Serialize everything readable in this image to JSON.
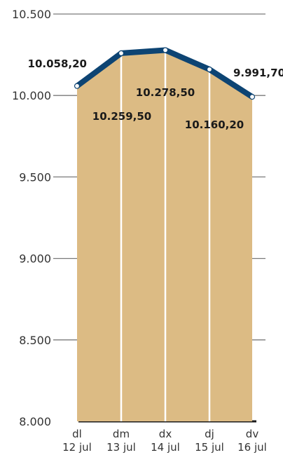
{
  "chart_data": {
    "type": "area",
    "x": [
      "dl 12 jul",
      "dm 13 jul",
      "dx 14 jul",
      "dj 15 jul",
      "dv 16 jul"
    ],
    "x_day_labels": [
      "dl",
      "dm",
      "dx",
      "dj",
      "dv"
    ],
    "x_date_labels": [
      "12 jul",
      "13 jul",
      "14 jul",
      "15 jul",
      "16 jul"
    ],
    "values": [
      10058.2,
      10259.5,
      10278.5,
      10160.2,
      9991.7
    ],
    "value_labels": [
      "10.058,20",
      "10.259,50",
      "10.278,50",
      "10.160,20",
      "9.991,70"
    ],
    "ylim": [
      8000,
      10500
    ],
    "yticks": [
      8000,
      8500,
      9000,
      9500,
      10000,
      10500
    ],
    "ytick_labels": [
      "8.000",
      "8.500",
      "9.000",
      "9.500",
      "10.000",
      "10.500"
    ],
    "grid": true,
    "title": "",
    "xlabel": "",
    "ylabel": "",
    "colors": {
      "fill": "#dcbb84",
      "line": "#0d4473",
      "grid": "#7a7a7a",
      "marker_fill": "#ffffff",
      "divider": "#ffffff",
      "axis": "#1a1a1a"
    }
  }
}
